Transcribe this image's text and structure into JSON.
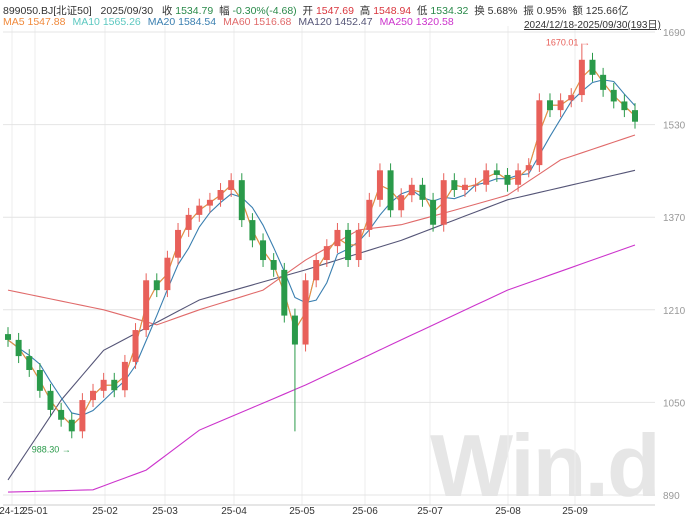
{
  "header": {
    "code": "899050.BJ[北证50]",
    "date": "2025/09/30",
    "close_label": "收",
    "close": "1534.79",
    "chg_label": "幅",
    "chg": "-0.30%(-4.68)",
    "open_label": "开",
    "open": "1547.69",
    "high_label": "高",
    "high": "1548.94",
    "low_label": "低",
    "low": "1534.32",
    "turn_label": "换",
    "turn": "5.68%",
    "amp_label": "振",
    "amp": "0.95%",
    "amt_label": "额",
    "amt": "125.66亿"
  },
  "ma_legend": [
    {
      "text": "MA5 1547.88",
      "color": "#f08a3c"
    },
    {
      "text": "MA10 1565.26",
      "color": "#5cc8c0"
    },
    {
      "text": "MA20 1584.54",
      "color": "#3a7fb0"
    },
    {
      "text": "MA60 1516.68",
      "color": "#e06a6a"
    },
    {
      "text": "MA120 1452.47",
      "color": "#555577"
    },
    {
      "text": "MA250 1320.58",
      "color": "#cc33cc"
    }
  ],
  "range": "2024/12/18-2025/09/30(193日)",
  "watermark": "Win.d",
  "chart_data": {
    "type": "candlestick",
    "ylim": [
      890,
      1690
    ],
    "yticks": [
      1690,
      1530,
      1370,
      1210,
      1050,
      890
    ],
    "xticks": [
      "24-12",
      "25-01",
      "25-02",
      "25-03",
      "25-04",
      "25-05",
      "25-06",
      "25-07",
      "25-08",
      "25-09"
    ],
    "annotations": [
      {
        "text": "1670.01",
        "type": "max"
      },
      {
        "text": "988.30",
        "type": "min"
      }
    ],
    "closes": [
      1158,
      1130,
      1106,
      1070,
      1037,
      1020,
      1000,
      1054,
      1070,
      1089,
      1071,
      1120,
      1175,
      1261,
      1244,
      1300,
      1348,
      1374,
      1390,
      1400,
      1417,
      1434,
      1365,
      1330,
      1296,
      1279,
      1200,
      1150,
      1261,
      1296,
      1320,
      1348,
      1296,
      1348,
      1400,
      1451,
      1382,
      1408,
      1426,
      1400,
      1357,
      1434,
      1417,
      1426,
      1426,
      1451,
      1443,
      1426,
      1451,
      1460,
      1572,
      1555,
      1572,
      1581,
      1642,
      1616,
      1590,
      1570,
      1555,
      1535
    ],
    "ma60": [
      [
        0,
        1244
      ],
      [
        9,
        1210
      ],
      [
        14,
        1184
      ],
      [
        18,
        1210
      ],
      [
        24,
        1244
      ],
      [
        28,
        1296
      ],
      [
        33,
        1348
      ],
      [
        37,
        1357
      ],
      [
        42,
        1382
      ],
      [
        47,
        1408
      ],
      [
        52,
        1469
      ],
      [
        59,
        1512
      ]
    ],
    "ma120": [
      [
        0,
        916
      ],
      [
        5,
        1054
      ],
      [
        9,
        1140
      ],
      [
        18,
        1227
      ],
      [
        28,
        1279
      ],
      [
        37,
        1330
      ],
      [
        47,
        1400
      ],
      [
        59,
        1451
      ]
    ],
    "ma250": [
      [
        0,
        895
      ],
      [
        8,
        899
      ],
      [
        13,
        933
      ],
      [
        18,
        1002
      ],
      [
        28,
        1080
      ],
      [
        37,
        1158
      ],
      [
        47,
        1244
      ],
      [
        59,
        1322
      ]
    ],
    "colors": {
      "up": "#e8605a",
      "down": "#2a9a4a",
      "ma5": "#f08a3c",
      "ma10": "#5cc8c0",
      "ma20": "#3a7fb0",
      "ma60": "#e06a6a",
      "ma120": "#555577",
      "ma250": "#cc33cc"
    }
  }
}
